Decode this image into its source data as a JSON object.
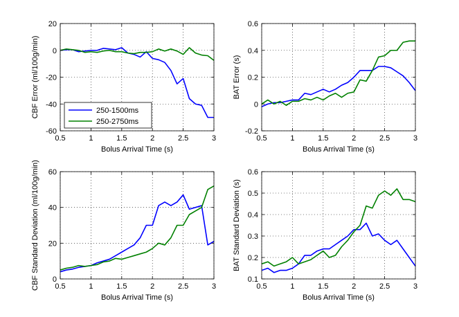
{
  "chart_data": [
    {
      "type": "line",
      "title": "",
      "xlabel": "Bolus Arrival Time (s)",
      "ylabel": "CBF Error (ml/100g/min)",
      "xlim": [
        0.5,
        3
      ],
      "ylim": [
        -60,
        20
      ],
      "xticks": [
        0.5,
        1,
        1.5,
        2,
        2.5,
        3
      ],
      "yticks": [
        -60,
        -40,
        -20,
        0,
        20
      ],
      "xtick_labels": [
        "0.5",
        "1",
        "1.5",
        "2",
        "2.5",
        "3"
      ],
      "ytick_labels": [
        "-60",
        "-40",
        "-20",
        "0",
        "20"
      ],
      "grid": true,
      "legend": {
        "position": "bottom-left",
        "entries": [
          "250-1500ms",
          "250-2750ms"
        ]
      },
      "x": [
        0.5,
        0.6,
        0.7,
        0.8,
        0.9,
        1.0,
        1.1,
        1.2,
        1.3,
        1.4,
        1.5,
        1.6,
        1.7,
        1.8,
        1.9,
        2.0,
        2.1,
        2.2,
        2.3,
        2.4,
        2.5,
        2.6,
        2.7,
        2.8,
        2.9,
        3.0
      ],
      "series": [
        {
          "name": "250-1500ms",
          "color": "#0000ff",
          "values": [
            0,
            0.5,
            0.5,
            -1,
            -0.5,
            0,
            0,
            1.5,
            1,
            0.5,
            2,
            -2,
            -3,
            -5,
            -1,
            -6,
            -7,
            -9,
            -15,
            -25,
            -21,
            -36,
            -40,
            -41,
            -50,
            -50
          ]
        },
        {
          "name": "250-2750ms",
          "color": "#008000",
          "values": [
            0,
            1,
            0.5,
            0,
            -1.5,
            -1,
            -1.5,
            -0.5,
            0,
            -1,
            -1,
            -2,
            -2.5,
            -1.5,
            -1.5,
            -1,
            1,
            -0.5,
            1,
            -0.5,
            -3,
            2,
            -2,
            -3.5,
            -4,
            -7.5
          ]
        }
      ]
    },
    {
      "type": "line",
      "title": "",
      "xlabel": "Bolus Arrival Time (s)",
      "ylabel": "BAT Error (s)",
      "xlim": [
        0.5,
        3
      ],
      "ylim": [
        -0.2,
        0.6
      ],
      "xticks": [
        0.5,
        1,
        1.5,
        2,
        2.5,
        3
      ],
      "yticks": [
        -0.2,
        0,
        0.2,
        0.4,
        0.6
      ],
      "xtick_labels": [
        "0.5",
        "1",
        "1.5",
        "2",
        "2.5",
        "3"
      ],
      "ytick_labels": [
        "-0.2",
        "0",
        "0.2",
        "0.4",
        "0.6"
      ],
      "grid": true,
      "x": [
        0.5,
        0.6,
        0.7,
        0.8,
        0.9,
        1.0,
        1.1,
        1.2,
        1.3,
        1.4,
        1.5,
        1.6,
        1.7,
        1.8,
        1.9,
        2.0,
        2.1,
        2.2,
        2.3,
        2.4,
        2.5,
        2.6,
        2.7,
        2.8,
        2.9,
        3.0
      ],
      "series": [
        {
          "name": "250-1500ms",
          "color": "#0000ff",
          "values": [
            -0.02,
            0,
            0.01,
            0.01,
            0.02,
            0.03,
            0.03,
            0.08,
            0.07,
            0.09,
            0.11,
            0.09,
            0.11,
            0.14,
            0.16,
            0.2,
            0.25,
            0.25,
            0.25,
            0.28,
            0.28,
            0.27,
            0.24,
            0.21,
            0.16,
            0.1
          ]
        },
        {
          "name": "250-2750ms",
          "color": "#008000",
          "values": [
            0,
            0.03,
            0,
            0.02,
            -0.01,
            0.02,
            0.02,
            0.04,
            0.03,
            0.05,
            0.03,
            0.06,
            0.08,
            0.05,
            0.08,
            0.09,
            0.18,
            0.17,
            0.25,
            0.35,
            0.36,
            0.4,
            0.4,
            0.46,
            0.47,
            0.47
          ]
        }
      ]
    },
    {
      "type": "line",
      "title": "",
      "xlabel": "Bolus Arrival Time (s)",
      "ylabel": "CBF Standard Deviation (ml/100g/min)",
      "xlim": [
        0.5,
        3
      ],
      "ylim": [
        0,
        60
      ],
      "xticks": [
        0.5,
        1,
        1.5,
        2,
        2.5,
        3
      ],
      "yticks": [
        0,
        20,
        40,
        60
      ],
      "xtick_labels": [
        "0.5",
        "1",
        "1.5",
        "2",
        "2.5",
        "3"
      ],
      "ytick_labels": [
        "0",
        "20",
        "40",
        "60"
      ],
      "grid": true,
      "x": [
        0.5,
        0.6,
        0.7,
        0.8,
        0.9,
        1.0,
        1.1,
        1.2,
        1.3,
        1.4,
        1.5,
        1.6,
        1.7,
        1.8,
        1.9,
        2.0,
        2.1,
        2.2,
        2.3,
        2.4,
        2.5,
        2.6,
        2.7,
        2.8,
        2.9,
        3.0
      ],
      "series": [
        {
          "name": "250-1500ms",
          "color": "#0000ff",
          "values": [
            4,
            5,
            5.5,
            6.5,
            7,
            7.5,
            9,
            10,
            11,
            13,
            15,
            17,
            19,
            23,
            30,
            30,
            41,
            43,
            41,
            43,
            47,
            39,
            40,
            41,
            19,
            21
          ]
        },
        {
          "name": "250-2750ms",
          "color": "#008000",
          "values": [
            5,
            6,
            6.5,
            7.5,
            7,
            7.5,
            8,
            9.5,
            10,
            11.5,
            11,
            12,
            13,
            14,
            15,
            17,
            20,
            19,
            23,
            30,
            30,
            36,
            38,
            40,
            50,
            52
          ]
        }
      ]
    },
    {
      "type": "line",
      "title": "",
      "xlabel": "Bolus Arrival Time (s)",
      "ylabel": "BAT Standard Deviation (s)",
      "xlim": [
        0.5,
        3
      ],
      "ylim": [
        0.1,
        0.6
      ],
      "xticks": [
        0.5,
        1,
        1.5,
        2,
        2.5,
        3
      ],
      "yticks": [
        0.1,
        0.2,
        0.3,
        0.4,
        0.5,
        0.6
      ],
      "xtick_labels": [
        "0.5",
        "1",
        "1.5",
        "2",
        "2.5",
        "3"
      ],
      "ytick_labels": [
        "0.1",
        "0.2",
        "0.3",
        "0.4",
        "0.5",
        "0.6"
      ],
      "grid": true,
      "x": [
        0.5,
        0.6,
        0.7,
        0.8,
        0.9,
        1.0,
        1.1,
        1.2,
        1.3,
        1.4,
        1.5,
        1.6,
        1.7,
        1.8,
        1.9,
        2.0,
        2.1,
        2.2,
        2.3,
        2.4,
        2.5,
        2.6,
        2.7,
        2.8,
        2.9,
        3.0
      ],
      "series": [
        {
          "name": "250-1500ms",
          "color": "#0000ff",
          "values": [
            0.14,
            0.15,
            0.13,
            0.14,
            0.14,
            0.15,
            0.17,
            0.21,
            0.21,
            0.23,
            0.24,
            0.24,
            0.26,
            0.28,
            0.3,
            0.33,
            0.33,
            0.36,
            0.3,
            0.31,
            0.28,
            0.26,
            0.28,
            0.24,
            0.2,
            0.16
          ]
        },
        {
          "name": "250-2750ms",
          "color": "#008000",
          "values": [
            0.17,
            0.18,
            0.16,
            0.17,
            0.18,
            0.2,
            0.17,
            0.18,
            0.19,
            0.21,
            0.23,
            0.2,
            0.21,
            0.25,
            0.28,
            0.32,
            0.35,
            0.44,
            0.43,
            0.49,
            0.51,
            0.49,
            0.52,
            0.47,
            0.47,
            0.46
          ]
        }
      ]
    }
  ]
}
